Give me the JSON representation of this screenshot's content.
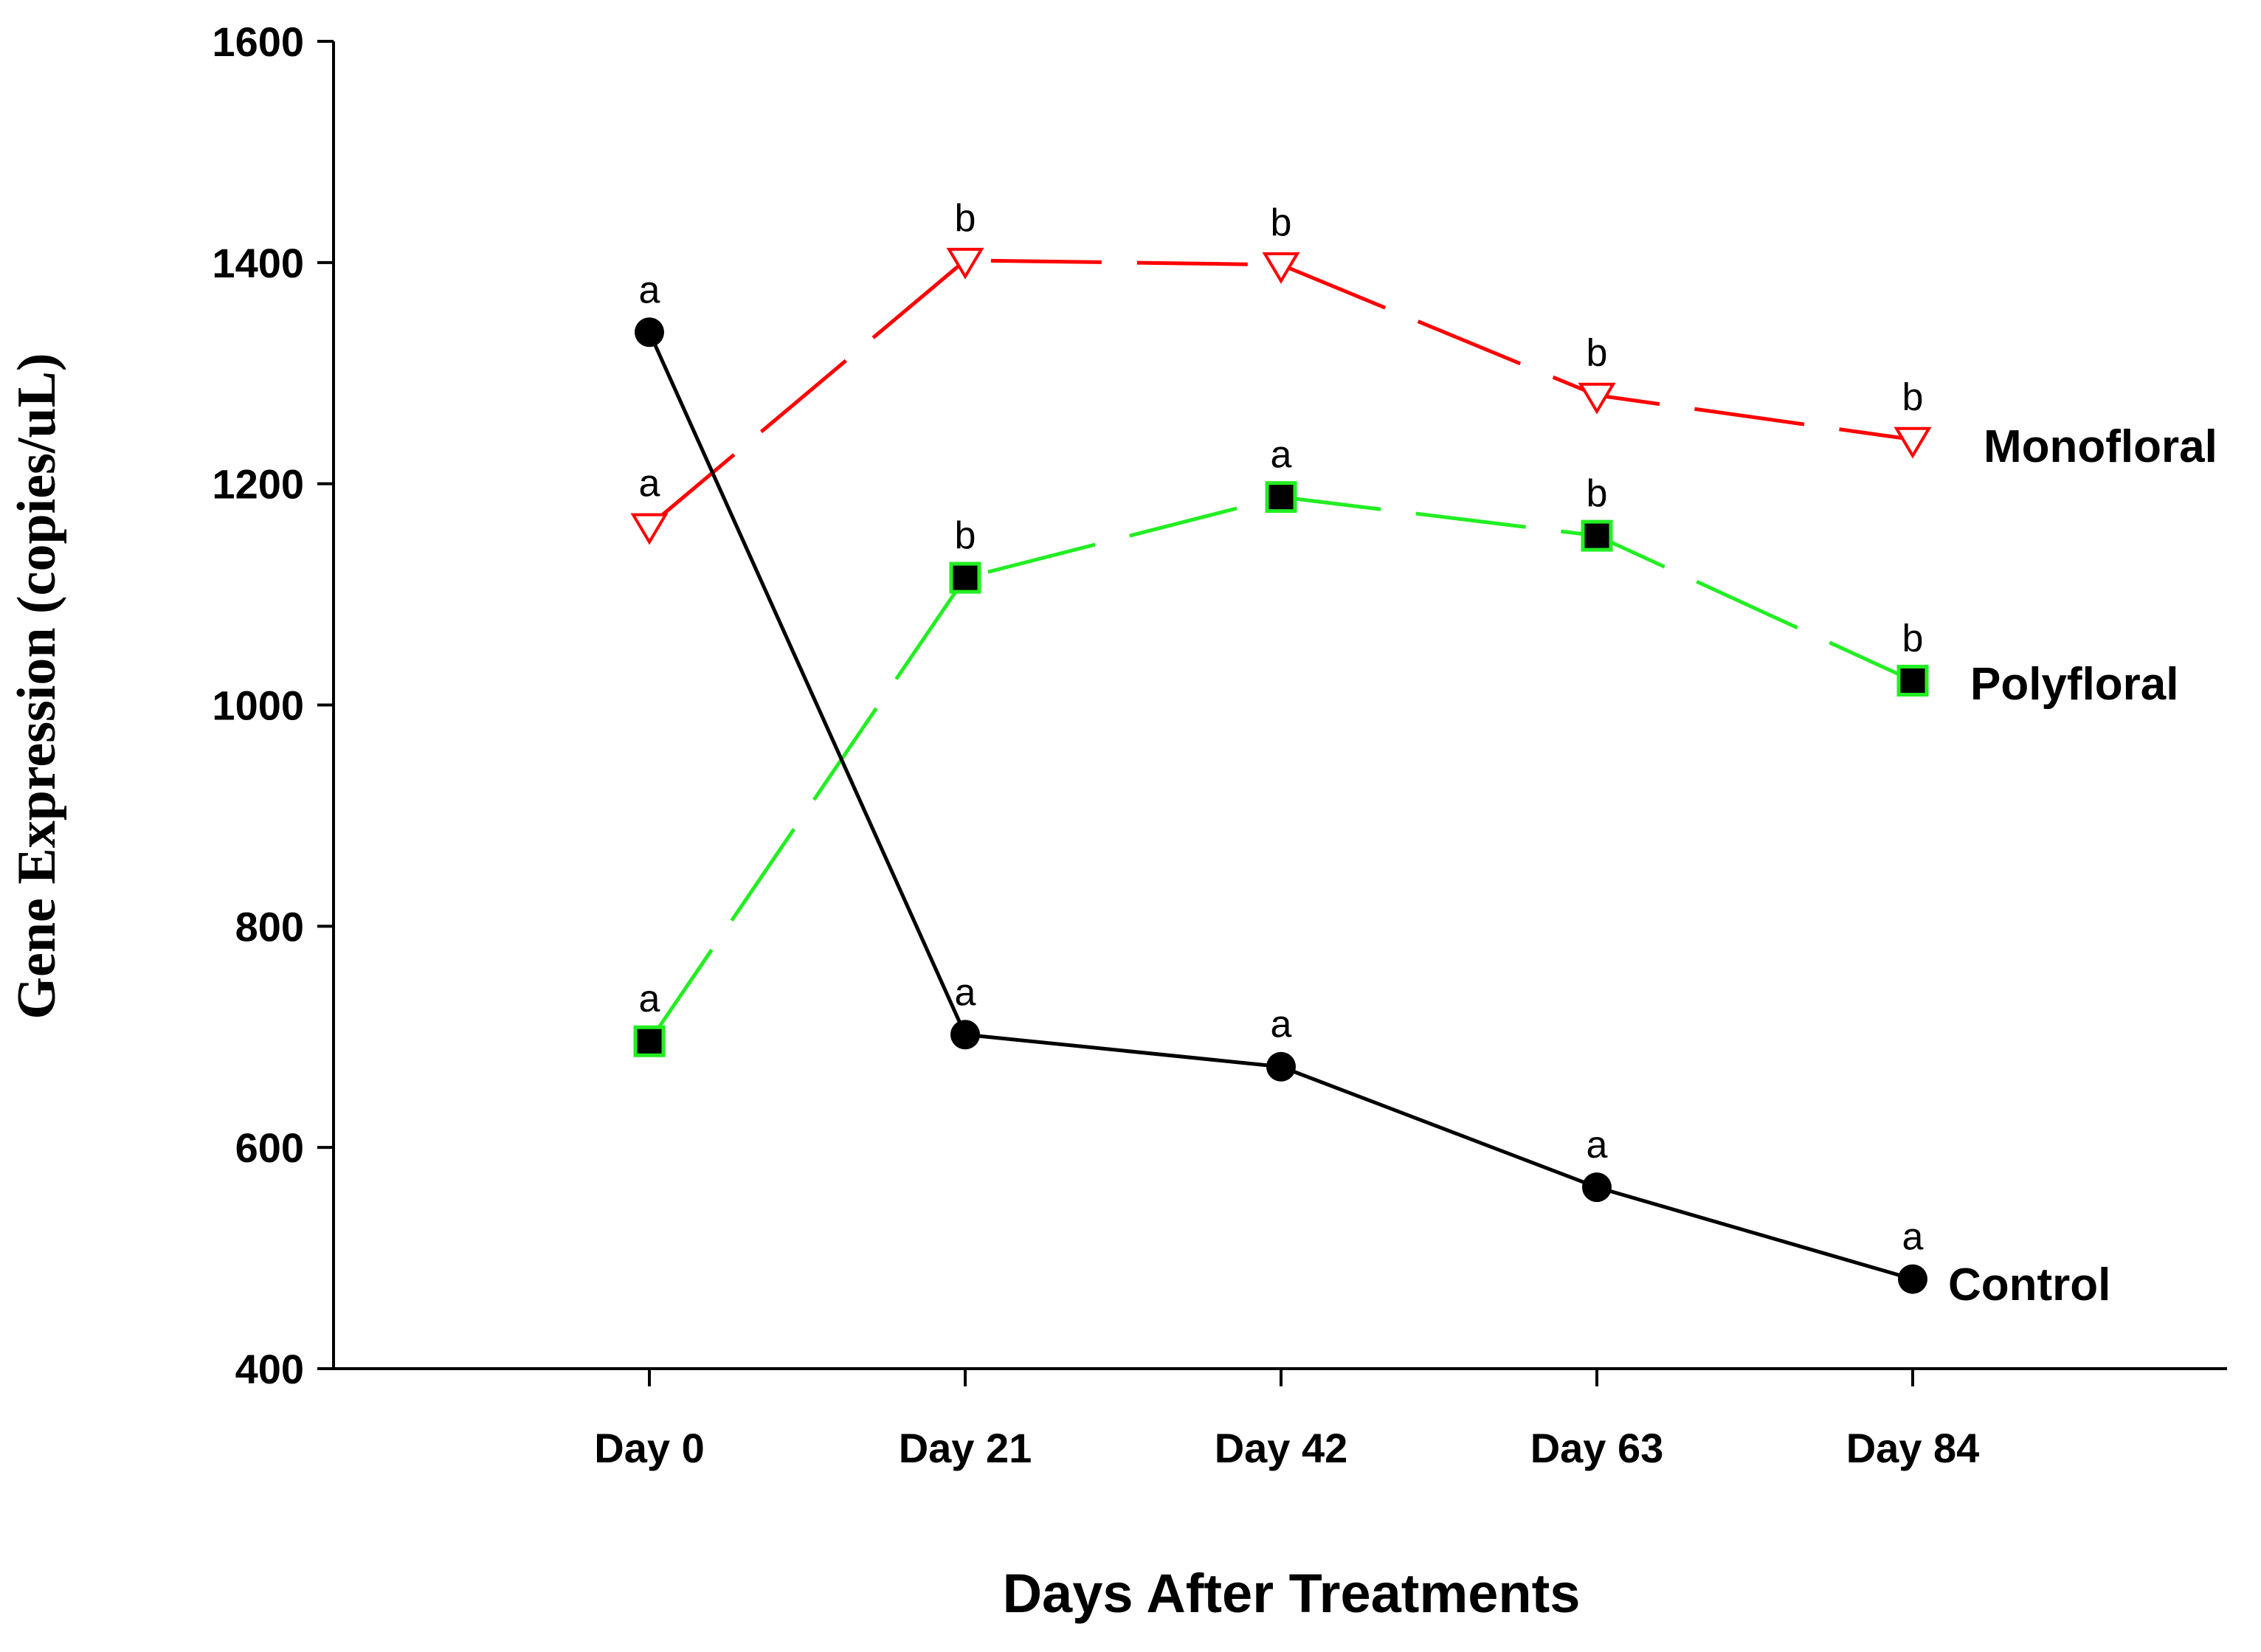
{
  "chart_data": {
    "type": "line",
    "title": "",
    "xlabel": "Days After Treatments",
    "ylabel": "Gene Expression (copies/uL)",
    "categories": [
      "Day 0",
      "Day 21",
      "Day 42",
      "Day 63",
      "Day 84"
    ],
    "ylim": [
      400,
      1600
    ],
    "yticks": [
      400,
      600,
      800,
      1000,
      1200,
      1400,
      1600
    ],
    "grid": false,
    "legend": "inline-right",
    "series": [
      {
        "name": "Monofloral",
        "color": "#ff0000",
        "marker": "triangle-down-open",
        "dashed": true,
        "values": [
          1162,
          1402,
          1398,
          1280,
          1240
        ],
        "sig": [
          "a",
          "b",
          "b",
          "b",
          "b"
        ]
      },
      {
        "name": "Polyfloral",
        "color": "#22ee22",
        "marker": "square-filled",
        "dashed": true,
        "values": [
          696,
          1115,
          1188,
          1153,
          1022
        ],
        "sig": [
          "a",
          "b",
          "a",
          "b",
          "b"
        ]
      },
      {
        "name": "Control",
        "color": "#000000",
        "marker": "circle-filled",
        "dashed": false,
        "values": [
          1337,
          702,
          673,
          564,
          481
        ],
        "sig": [
          "a",
          "a",
          "a",
          "a",
          "a"
        ]
      }
    ]
  }
}
